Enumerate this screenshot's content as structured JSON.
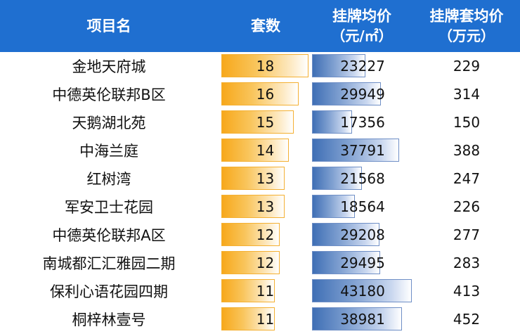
{
  "header": {
    "name": "项目名",
    "count": "套数",
    "price_l1": "挂牌均价",
    "price_l2": "（元/㎡）",
    "total_l1": "挂牌套均价",
    "total_l2": "（万元）"
  },
  "rows": [
    {
      "name": "金地天府城",
      "count": "18",
      "price": "23227",
      "total": "229"
    },
    {
      "name": "中德英伦联邦B区",
      "count": "16",
      "price": "29949",
      "total": "314"
    },
    {
      "name": "天鹅湖北苑",
      "count": "15",
      "price": "17356",
      "total": "150"
    },
    {
      "name": "中海兰庭",
      "count": "14",
      "price": "37791",
      "total": "388"
    },
    {
      "name": "红树湾",
      "count": "13",
      "price": "21568",
      "total": "247"
    },
    {
      "name": "军安卫士花园",
      "count": "13",
      "price": "18564",
      "total": "226"
    },
    {
      "name": "中德英伦联邦A区",
      "count": "12",
      "price": "29208",
      "total": "277"
    },
    {
      "name": "南城都汇汇雅园二期",
      "count": "12",
      "price": "29495",
      "total": "283"
    },
    {
      "name": "保利心语花园四期",
      "count": "11",
      "price": "43180",
      "total": "413"
    },
    {
      "name": "桐梓林壹号",
      "count": "11",
      "price": "38981",
      "total": "452"
    }
  ],
  "colors": {
    "header_bg": "#1f6fd0",
    "count_bar": "#f7a81b",
    "price_bar": "#3f6fb5"
  }
}
